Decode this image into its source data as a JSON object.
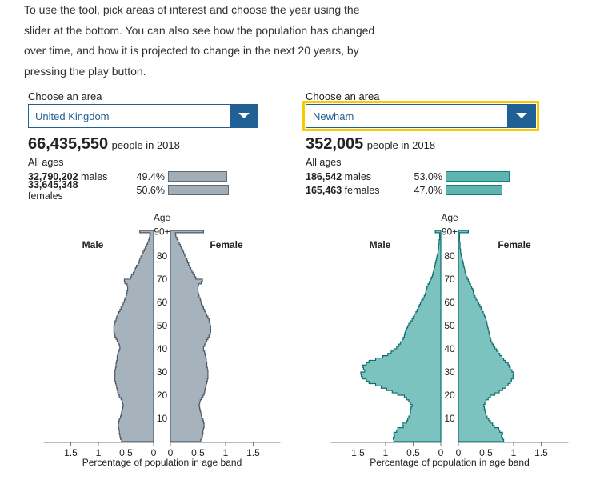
{
  "intro": {
    "lines": [
      "To use the tool, pick areas of interest and choose the year using the",
      "slider at the bottom. You can also see how the population has changed",
      "over time, and how it is projected to change in the next 20 years, by",
      "pressing the play button."
    ]
  },
  "panels": [
    {
      "choose_label": "Choose an area",
      "area": "United Kingdom",
      "total": "66,435,550",
      "total_suffix": "people in 2018",
      "all_ages": "All ages",
      "males_count": "32,790,202",
      "males_word": "males",
      "males_pct": "49.4%",
      "females_count": "33,645,348",
      "females_word": "females",
      "females_pct": "50.6%",
      "bar_color": "#a2adb6",
      "bar_border": "#5d6b77"
    },
    {
      "choose_label": "Choose an area",
      "area": "Newham",
      "total": "352,005",
      "total_suffix": "people in 2018",
      "all_ages": "All ages",
      "males_count": "186,542",
      "males_word": "males",
      "males_pct": "53.0%",
      "females_count": "165,463",
      "females_word": "females",
      "females_pct": "47.0%",
      "bar_color": "#5fb4b0",
      "bar_border": "#13807e"
    }
  ],
  "chart_data": [
    {
      "type": "area",
      "title": "",
      "area": "United Kingdom",
      "fill": "#a6b2bc",
      "stroke": "#4d5a66",
      "age_axis_label": "Age",
      "age_ticks": [
        "10",
        "20",
        "30",
        "40",
        "50",
        "60",
        "70",
        "80",
        "90+"
      ],
      "male_label": "Male",
      "female_label": "Female",
      "xlabel": "Percentage of population in age band",
      "x_ticks": [
        "1.5",
        "1",
        "0.5",
        "0",
        "0",
        "0.5",
        "1",
        "1.5"
      ],
      "xlim": [
        0,
        1.5
      ],
      "ages": [
        0,
        1,
        2,
        3,
        4,
        5,
        6,
        7,
        8,
        9,
        10,
        11,
        12,
        13,
        14,
        15,
        16,
        17,
        18,
        19,
        20,
        21,
        22,
        23,
        24,
        25,
        26,
        27,
        28,
        29,
        30,
        31,
        32,
        33,
        34,
        35,
        36,
        37,
        38,
        39,
        40,
        41,
        42,
        43,
        44,
        45,
        46,
        47,
        48,
        49,
        50,
        51,
        52,
        53,
        54,
        55,
        56,
        57,
        58,
        59,
        60,
        61,
        62,
        63,
        64,
        65,
        66,
        67,
        68,
        69,
        70,
        71,
        72,
        73,
        74,
        75,
        76,
        77,
        78,
        79,
        80,
        81,
        82,
        83,
        84,
        85,
        86,
        87,
        88,
        89,
        90
      ],
      "male": [
        0.58,
        0.6,
        0.61,
        0.62,
        0.62,
        0.63,
        0.64,
        0.64,
        0.63,
        0.62,
        0.6,
        0.59,
        0.58,
        0.57,
        0.56,
        0.55,
        0.56,
        0.57,
        0.59,
        0.62,
        0.64,
        0.65,
        0.66,
        0.67,
        0.68,
        0.69,
        0.7,
        0.7,
        0.7,
        0.7,
        0.7,
        0.69,
        0.68,
        0.68,
        0.67,
        0.66,
        0.66,
        0.65,
        0.64,
        0.62,
        0.61,
        0.62,
        0.64,
        0.66,
        0.68,
        0.7,
        0.71,
        0.72,
        0.72,
        0.72,
        0.71,
        0.7,
        0.68,
        0.67,
        0.65,
        0.63,
        0.61,
        0.59,
        0.57,
        0.55,
        0.53,
        0.52,
        0.5,
        0.49,
        0.48,
        0.47,
        0.47,
        0.48,
        0.52,
        0.53,
        0.42,
        0.4,
        0.37,
        0.35,
        0.33,
        0.31,
        0.28,
        0.26,
        0.25,
        0.23,
        0.21,
        0.19,
        0.17,
        0.15,
        0.13,
        0.11,
        0.09,
        0.08,
        0.07,
        0.06,
        0.25
      ],
      "female": [
        0.55,
        0.57,
        0.58,
        0.59,
        0.59,
        0.6,
        0.61,
        0.61,
        0.6,
        0.59,
        0.57,
        0.56,
        0.55,
        0.54,
        0.53,
        0.52,
        0.53,
        0.54,
        0.56,
        0.59,
        0.61,
        0.62,
        0.63,
        0.64,
        0.65,
        0.66,
        0.67,
        0.68,
        0.68,
        0.68,
        0.68,
        0.67,
        0.66,
        0.66,
        0.65,
        0.65,
        0.64,
        0.63,
        0.62,
        0.6,
        0.6,
        0.62,
        0.64,
        0.66,
        0.68,
        0.7,
        0.72,
        0.73,
        0.73,
        0.73,
        0.72,
        0.71,
        0.7,
        0.68,
        0.66,
        0.64,
        0.62,
        0.6,
        0.58,
        0.56,
        0.55,
        0.54,
        0.52,
        0.51,
        0.5,
        0.5,
        0.5,
        0.51,
        0.56,
        0.58,
        0.46,
        0.44,
        0.41,
        0.39,
        0.37,
        0.35,
        0.33,
        0.31,
        0.3,
        0.28,
        0.26,
        0.24,
        0.22,
        0.2,
        0.18,
        0.16,
        0.14,
        0.12,
        0.1,
        0.09,
        0.6
      ]
    },
    {
      "type": "area",
      "title": "",
      "area": "Newham",
      "fill": "#7cc3c0",
      "stroke": "#0f6f6c",
      "age_axis_label": "Age",
      "age_ticks": [
        "10",
        "20",
        "30",
        "40",
        "50",
        "60",
        "70",
        "80",
        "90+"
      ],
      "male_label": "Male",
      "female_label": "Female",
      "xlabel": "Percentage of population in age band",
      "x_ticks": [
        "1.5",
        "1",
        "0.5",
        "0",
        "0",
        "0.5",
        "1",
        "1.5"
      ],
      "xlim": [
        0,
        1.5
      ],
      "ages": [
        0,
        1,
        2,
        3,
        4,
        5,
        6,
        7,
        8,
        9,
        10,
        11,
        12,
        13,
        14,
        15,
        16,
        17,
        18,
        19,
        20,
        21,
        22,
        23,
        24,
        25,
        26,
        27,
        28,
        29,
        30,
        31,
        32,
        33,
        34,
        35,
        36,
        37,
        38,
        39,
        40,
        41,
        42,
        43,
        44,
        45,
        46,
        47,
        48,
        49,
        50,
        51,
        52,
        53,
        54,
        55,
        56,
        57,
        58,
        59,
        60,
        61,
        62,
        63,
        64,
        65,
        66,
        67,
        68,
        69,
        70,
        71,
        72,
        73,
        74,
        75,
        76,
        77,
        78,
        79,
        80,
        81,
        82,
        83,
        84,
        85,
        86,
        87,
        88,
        89,
        90
      ],
      "male": [
        0.85,
        0.86,
        0.84,
        0.85,
        0.8,
        0.78,
        0.68,
        0.7,
        0.62,
        0.6,
        0.58,
        0.56,
        0.55,
        0.55,
        0.54,
        0.52,
        0.55,
        0.58,
        0.62,
        0.66,
        0.78,
        0.88,
        0.98,
        1.08,
        1.18,
        1.3,
        1.35,
        1.42,
        1.44,
        1.45,
        1.38,
        1.4,
        1.42,
        1.35,
        1.3,
        1.18,
        1.05,
        0.96,
        0.9,
        0.85,
        0.8,
        0.76,
        0.73,
        0.7,
        0.68,
        0.66,
        0.65,
        0.64,
        0.62,
        0.6,
        0.58,
        0.55,
        0.52,
        0.5,
        0.48,
        0.45,
        0.43,
        0.41,
        0.39,
        0.37,
        0.35,
        0.32,
        0.3,
        0.28,
        0.27,
        0.26,
        0.25,
        0.23,
        0.21,
        0.19,
        0.17,
        0.15,
        0.14,
        0.13,
        0.12,
        0.11,
        0.1,
        0.09,
        0.08,
        0.07,
        0.06,
        0.05,
        0.05,
        0.04,
        0.04,
        0.03,
        0.03,
        0.02,
        0.02,
        0.02,
        0.1
      ],
      "female": [
        0.82,
        0.8,
        0.78,
        0.8,
        0.75,
        0.73,
        0.65,
        0.62,
        0.58,
        0.55,
        0.52,
        0.5,
        0.49,
        0.48,
        0.47,
        0.46,
        0.48,
        0.5,
        0.54,
        0.58,
        0.66,
        0.74,
        0.8,
        0.86,
        0.9,
        0.94,
        0.96,
        0.99,
        0.99,
        1.0,
        0.97,
        0.94,
        0.92,
        0.9,
        0.85,
        0.82,
        0.79,
        0.75,
        0.72,
        0.69,
        0.66,
        0.63,
        0.61,
        0.59,
        0.58,
        0.57,
        0.56,
        0.55,
        0.54,
        0.53,
        0.52,
        0.51,
        0.5,
        0.49,
        0.47,
        0.45,
        0.43,
        0.41,
        0.39,
        0.37,
        0.35,
        0.32,
        0.3,
        0.28,
        0.27,
        0.26,
        0.24,
        0.22,
        0.2,
        0.18,
        0.16,
        0.14,
        0.13,
        0.12,
        0.11,
        0.1,
        0.09,
        0.08,
        0.07,
        0.06,
        0.05,
        0.04,
        0.04,
        0.03,
        0.03,
        0.03,
        0.02,
        0.02,
        0.02,
        0.02,
        0.18
      ]
    }
  ]
}
